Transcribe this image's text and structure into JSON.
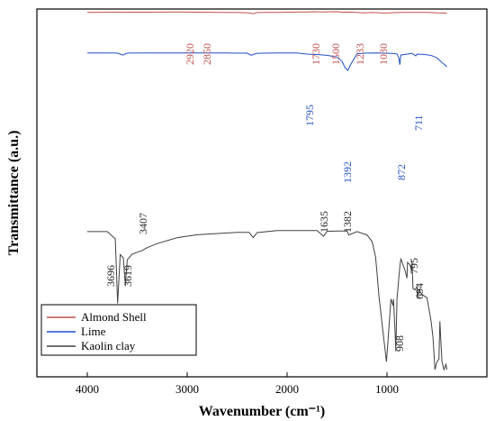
{
  "chart_data": {
    "type": "line",
    "xlabel": "Wavenumber (cm⁻¹)",
    "ylabel": "Transmittance (a.u.)",
    "xlim": [
      4500,
      300
    ],
    "ylim": [
      0,
      100
    ],
    "x_ticks": [
      4000,
      3000,
      2000,
      1000
    ],
    "legend_position": "bottom-left",
    "grid": false,
    "series": [
      {
        "name": "Almond Shell",
        "color": "#c0504d",
        "x": [
          4000,
          3800,
          3600,
          3400,
          3200,
          3000,
          2920,
          2850,
          2700,
          2500,
          2380,
          2340,
          2300,
          2100,
          1900,
          1800,
          1730,
          1650,
          1600,
          1500,
          1450,
          1380,
          1300,
          1233,
          1150,
          1100,
          1030,
          1000,
          900,
          800,
          700,
          600,
          500,
          400
        ],
        "values": [
          92.6,
          92.8,
          92.9,
          93.0,
          93.2,
          93.3,
          92.9,
          93.0,
          92.6,
          92.3,
          91.4,
          89.6,
          92.3,
          92.6,
          93.2,
          93.6,
          93.9,
          93.4,
          93.8,
          94.0,
          93.1,
          93.2,
          92.3,
          91.5,
          92.2,
          92.0,
          90.9,
          91.3,
          92.3,
          92.5,
          92.6,
          92.6,
          91.4,
          90.7
        ]
      },
      {
        "name": "Lime",
        "color": "#1f4fc8",
        "x": [
          4000,
          3800,
          3700,
          3643,
          3600,
          3400,
          3200,
          3000,
          2800,
          2600,
          2400,
          2360,
          2340,
          2300,
          2100,
          1900,
          1795,
          1700,
          1600,
          1500,
          1450,
          1420,
          1392,
          1370,
          1300,
          1200,
          1100,
          1000,
          950,
          900,
          880,
          872,
          860,
          800,
          750,
          711,
          700,
          650,
          600,
          550,
          500,
          450,
          400
        ],
        "values": [
          73.1,
          73.1,
          73.0,
          69.9,
          73.0,
          73.2,
          73.2,
          73.2,
          73.2,
          73.1,
          72.8,
          69.6,
          70.8,
          72.7,
          73.3,
          73.3,
          71.3,
          70.7,
          69.5,
          66.7,
          60.0,
          50.0,
          45.6,
          53.0,
          72.0,
          73.0,
          73.1,
          72.7,
          72.5,
          71.7,
          65.0,
          54.5,
          70.0,
          71.5,
          72.5,
          68.5,
          71.5,
          71.0,
          70.4,
          68.9,
          65.5,
          58.3,
          51.3
        ]
      },
      {
        "name": "Kaolin clay",
        "color": "#404040",
        "x": [
          4000,
          3800,
          3720,
          3696,
          3670,
          3640,
          3619,
          3600,
          3550,
          3450,
          3407,
          3300,
          3100,
          2900,
          2500,
          2380,
          2340,
          2300,
          2100,
          1900,
          1700,
          1635,
          1600,
          1500,
          1400,
          1382,
          1300,
          1200,
          1150,
          1114,
          1100,
          1080,
          1030,
          1005,
          990,
          960,
          940,
          935,
          920,
          912,
          900,
          870,
          860,
          820,
          800,
          795,
          780,
          770,
          755,
          750,
          740,
          720,
          700,
          694,
          680,
          650,
          600,
          560,
          540,
          520,
          500,
          480,
          470,
          465,
          450,
          430,
          410,
          400
        ],
        "values": [
          52.8,
          52.8,
          50.0,
          25.3,
          44.0,
          42.8,
          32.1,
          42.0,
          44.2,
          45.6,
          46.5,
          48.2,
          50.5,
          51.6,
          52.5,
          52.5,
          50.5,
          52.4,
          53.2,
          53.2,
          53.2,
          51.0,
          52.9,
          53.0,
          53.0,
          51.5,
          52.8,
          51.5,
          49.0,
          43.1,
          37.0,
          28.0,
          11.0,
          3.0,
          11.0,
          27.0,
          24.5,
          27.0,
          15.0,
          7.0,
          27.0,
          40.0,
          42.3,
          38.0,
          35.0,
          41.0,
          40.5,
          40.0,
          38.0,
          41.5,
          31.0,
          30.5,
          31.8,
          27.5,
          30.5,
          28.8,
          27.5,
          19.0,
          12.4,
          0.0,
          3.0,
          4.0,
          18.5,
          14.0,
          3.0,
          0.0,
          2.0,
          0.0
        ]
      }
    ],
    "annotations": [
      {
        "series": "Almond Shell",
        "labels": [
          "2920",
          "2850",
          "1730",
          "1500",
          "1233",
          "1030"
        ]
      },
      {
        "series": "Lime",
        "labels": [
          "1795",
          "1392",
          "872",
          "711"
        ]
      },
      {
        "series": "Kaolin clay",
        "labels": [
          "3696",
          "3619",
          "3407",
          "1635",
          "1382",
          "908",
          "795",
          "694"
        ]
      }
    ]
  }
}
